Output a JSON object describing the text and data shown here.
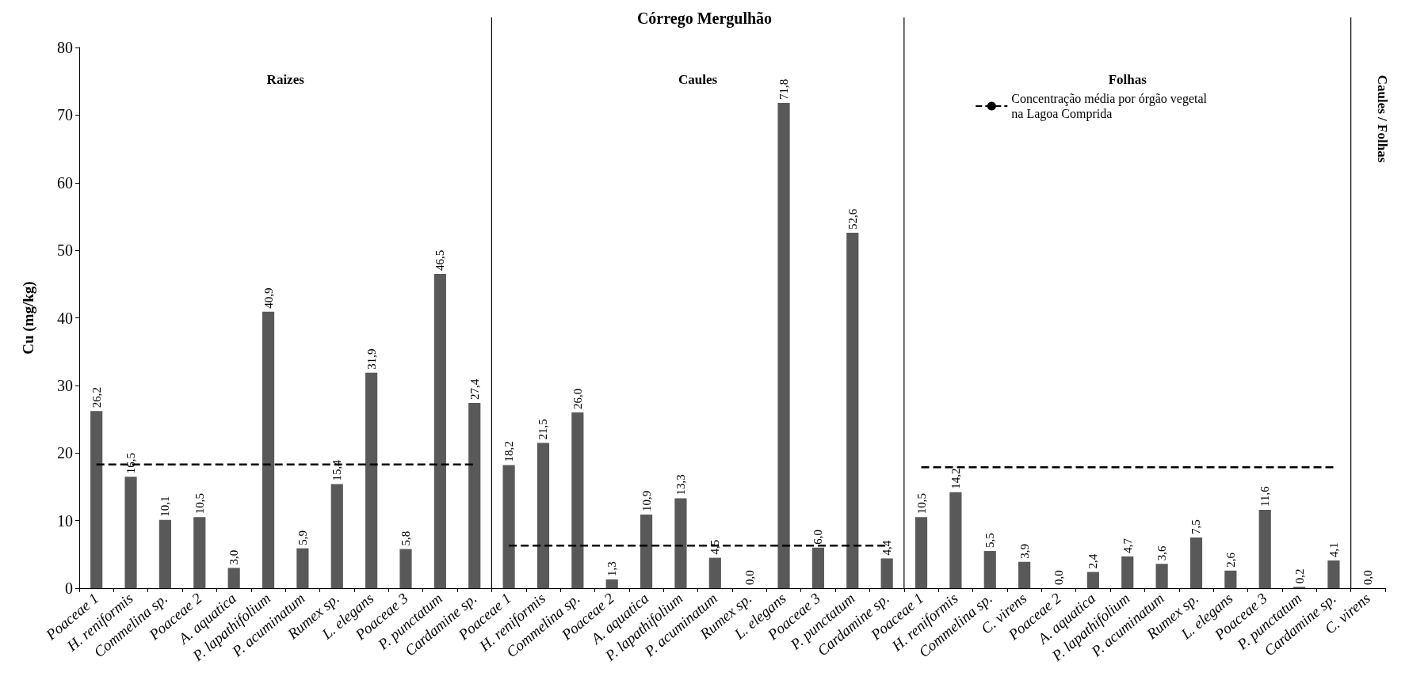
{
  "chart_data": {
    "type": "bar",
    "title": "Córrego Mergulhão",
    "ylabel": "Cu (mg/kg)",
    "categories": [
      "Poaceae 1",
      "H. reniformis",
      "Commelina sp.",
      "Poaceae 2",
      "A. aquatica",
      "P. lapathifolium",
      "P. acuminatum",
      "Rumex sp.",
      "L. elegans",
      "Poaceae 3",
      "P. punctatum",
      "Cardamine sp.",
      "Poaceae 1",
      "H. reniformis",
      "Commelina sp.",
      "Poaceae 2",
      "A. aquatica",
      "P. lapathifolium",
      "P. acuminatum",
      "Rumex sp.",
      "L. elegans",
      "Poaceae 3",
      "P. punctatum",
      "Cardamine sp.",
      "Poaceae 1",
      "H. reniformis",
      "Commelina sp.",
      "C. virens",
      "Poaceae 2",
      "A. aquatica",
      "P. lapathifolium",
      "P. acuminatum",
      "Rumex sp.",
      "L. elegans",
      "Poaceae 3",
      "P. punctatum",
      "Cardamine sp.",
      "C. virens"
    ],
    "series": [
      {
        "color": "#595959",
        "values": [
          26.2,
          16.5,
          10.1,
          10.5,
          3.0,
          40.9,
          5.9,
          15.4,
          31.9,
          5.8,
          46.5,
          27.4,
          18.2,
          21.5,
          26.0,
          1.3,
          10.9,
          13.3,
          4.5,
          0.0,
          71.8,
          6.0,
          52.6,
          4.4,
          10.5,
          14.2,
          5.5,
          3.9,
          0.0,
          2.4,
          4.7,
          3.6,
          7.5,
          2.6,
          11.6,
          0.2,
          4.1,
          0.0
        ],
        "value_labels": [
          "26,2",
          "16,5",
          "10,1",
          "10,5",
          "3,0",
          "40,9",
          "5,9",
          "15,4",
          "31,9",
          "5,8",
          "46,5",
          "27,4",
          "18,2",
          "21,5",
          "26,0",
          "1,3",
          "10,9",
          "13,3",
          "4,5",
          "0,0",
          "71,8",
          "6,0",
          "52,6",
          "4,4",
          "10,5",
          "14,2",
          "5,5",
          "3,9",
          "0,0",
          "2,4",
          "4,7",
          "3,6",
          "7,5",
          "2,6",
          "11,6",
          "0,2",
          "4,1",
          "0,0"
        ]
      },
      {
        "type": "line",
        "name": "Concentração média por órgão vegetal na Lagoa Comprida",
        "color": "#000000",
        "line_style": "dashed",
        "marker": "none",
        "values": [
          18.3,
          18.3,
          18.3,
          18.3,
          18.3,
          18.3,
          18.3,
          18.3,
          18.3,
          18.3,
          18.3,
          18.3,
          6.3,
          6.3,
          6.3,
          6.3,
          6.3,
          6.3,
          6.3,
          6.3,
          6.3,
          6.3,
          6.3,
          6.3,
          17.9,
          17.9,
          17.9,
          17.9,
          17.9,
          17.9,
          17.9,
          17.9,
          17.9,
          17.9,
          17.9,
          17.9,
          17.9,
          null
        ]
      }
    ],
    "annotations": [
      "Raizes",
      "Caules",
      "Folhas",
      "Caules / Folhas"
    ],
    "ylim": [
      0,
      80
    ],
    "yticks": [
      0,
      10,
      20,
      30,
      40,
      50,
      60,
      70,
      80
    ],
    "grid": false,
    "legend": "top right"
  }
}
